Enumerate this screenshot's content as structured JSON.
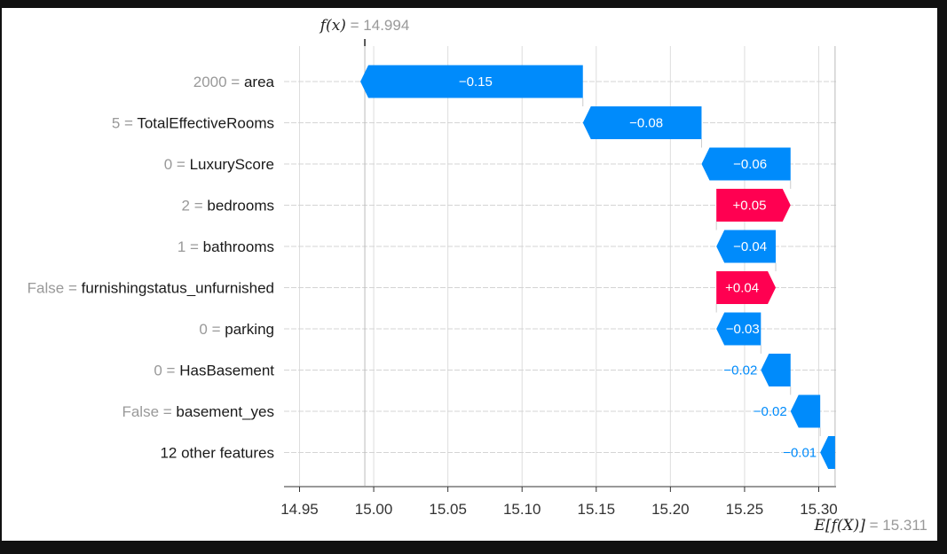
{
  "chart_data": {
    "type": "waterfall",
    "fx_label": "f(x)",
    "fx_value": "14.994",
    "ex_label": "E[f(X)]",
    "ex_value": "15.311",
    "base_value": 15.311,
    "output_value": 14.994,
    "xlim": [
      14.94,
      15.31
    ],
    "x_ticks": [
      14.95,
      15.0,
      15.05,
      15.1,
      15.15,
      15.2,
      15.25,
      15.3
    ],
    "x_tick_labels": [
      "14.95",
      "15.00",
      "15.05",
      "15.10",
      "15.15",
      "15.20",
      "15.25",
      "15.30"
    ],
    "features": [
      {
        "value": "2000",
        "name": "area",
        "contribution": -0.15,
        "label": "−0.15"
      },
      {
        "value": "5",
        "name": "TotalEffectiveRooms",
        "contribution": -0.08,
        "label": "−0.08"
      },
      {
        "value": "0",
        "name": "LuxuryScore",
        "contribution": -0.06,
        "label": "−0.06"
      },
      {
        "value": "2",
        "name": "bedrooms",
        "contribution": 0.05,
        "label": "+0.05"
      },
      {
        "value": "1",
        "name": "bathrooms",
        "contribution": -0.04,
        "label": "−0.04"
      },
      {
        "value": "False",
        "name": "furnishingstatus_unfurnished",
        "contribution": 0.04,
        "label": "+0.04"
      },
      {
        "value": "0",
        "name": "parking",
        "contribution": -0.03,
        "label": "−0.03"
      },
      {
        "value": "0",
        "name": "HasBasement",
        "contribution": -0.02,
        "label": "−0.02"
      },
      {
        "value": "False",
        "name": "basement_yes",
        "contribution": -0.02,
        "label": "−0.02"
      },
      {
        "value": "",
        "name": "12 other features",
        "contribution": -0.01,
        "label": "−0.01"
      }
    ],
    "colors": {
      "negative": "#008bfb",
      "positive": "#ff0051",
      "background": "#ffffff",
      "frame": "#111111",
      "grid": "#dddddd"
    }
  }
}
